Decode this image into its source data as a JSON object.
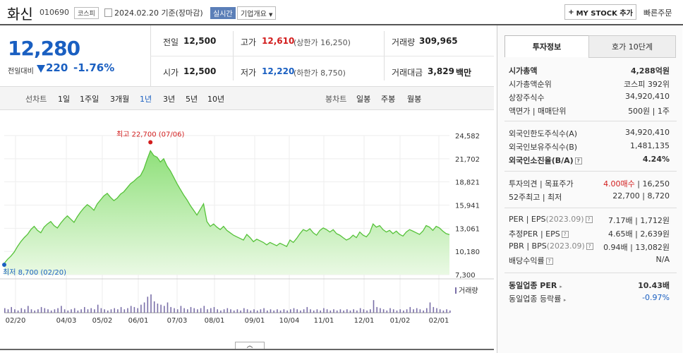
{
  "header": {
    "name": "화신",
    "code": "010690",
    "market": "코스피",
    "date": "2024.02.20",
    "date_suffix": "기준(장마감)",
    "realtime_label": "실시간",
    "overview_label": "기업개요",
    "mystock_label": "MY STOCK 추가",
    "quick_order_label": "빠른주문"
  },
  "price": {
    "current": "12,280",
    "diff_label": "전일대비",
    "diff": "220",
    "rate": "-1.76%"
  },
  "summary": {
    "prev_label": "전일",
    "prev": "12,500",
    "high_label": "고가",
    "high": "12,610",
    "upper_limit": "(상한가 16,250)",
    "volume_label": "거래량",
    "volume": "309,965",
    "open_label": "시가",
    "open": "12,500",
    "low_label": "저가",
    "low": "12,220",
    "lower_limit": "(하한가 8,750)",
    "amount_label": "거래대금",
    "amount": "3,829",
    "amount_unit": "백만"
  },
  "periods": {
    "line_label": "선차트",
    "items": [
      "1일",
      "1주일",
      "3개월",
      "1년",
      "3년",
      "5년",
      "10년"
    ],
    "active": "1년",
    "candle_label": "봉차트",
    "candle_items": [
      "일봉",
      "주봉",
      "월봉"
    ]
  },
  "chart_data": {
    "type": "area",
    "y_ticks": [
      "24,582",
      "21,702",
      "18,821",
      "15,941",
      "13,061",
      "10,180",
      "7,300"
    ],
    "ylim": [
      7300,
      24582
    ],
    "x_ticks": [
      "02/20",
      "04/03",
      "05/02",
      "06/01",
      "07/03",
      "08/01",
      "09/01",
      "10/04",
      "11/01",
      "12/01",
      "01/02",
      "02/01"
    ],
    "high_annotation": "최고 22,700 (07/06)",
    "low_annotation": "최저 8,700 (02/20)",
    "volume_label": "거래량",
    "values": [
      8700,
      9200,
      9600,
      10100,
      10800,
      11400,
      11900,
      12300,
      12900,
      13300,
      12800,
      12500,
      13200,
      13600,
      13900,
      13400,
      13100,
      13700,
      14200,
      14600,
      14200,
      13800,
      14500,
      15100,
      15600,
      16000,
      15700,
      15300,
      16100,
      16600,
      17100,
      17400,
      16900,
      16500,
      16800,
      17300,
      17600,
      18100,
      18600,
      18900,
      19300,
      19600,
      20400,
      21600,
      22700,
      22100,
      21900,
      21300,
      21700,
      20800,
      20200,
      19400,
      18600,
      17900,
      17200,
      16600,
      15900,
      15300,
      14700,
      15400,
      16100,
      13900,
      13300,
      13600,
      13200,
      12900,
      13300,
      12800,
      12500,
      12200,
      12000,
      11800,
      11600,
      12300,
      11900,
      11400,
      11700,
      11500,
      11300,
      11000,
      11300,
      11100,
      10900,
      11200,
      11000,
      10800,
      11600,
      11300,
      11800,
      12400,
      12900,
      12700,
      13000,
      12500,
      12200,
      12800,
      13100,
      12900,
      12600,
      12900,
      12400,
      12200,
      11900,
      11600,
      11800,
      12200,
      11900,
      12600,
      12200,
      12000,
      12500,
      13600,
      13200,
      13400,
      12900,
      12600,
      12800,
      12400,
      12700,
      12300,
      12100,
      12600,
      12900,
      12700,
      12500,
      12300,
      12700,
      13400,
      13200,
      12800,
      13300,
      13100,
      12700,
      12400,
      12280
    ],
    "volumes": [
      4,
      3,
      5,
      3,
      2,
      4,
      3,
      6,
      3,
      2,
      3,
      5,
      4,
      3,
      2,
      3,
      4,
      6,
      3,
      2,
      3,
      4,
      2,
      3,
      5,
      3,
      4,
      3,
      7,
      4,
      3,
      2,
      3,
      4,
      3,
      5,
      3,
      4,
      6,
      5,
      4,
      7,
      9,
      14,
      16,
      10,
      8,
      7,
      6,
      9,
      5,
      4,
      3,
      6,
      4,
      3,
      5,
      4,
      3,
      4,
      6,
      3,
      4,
      5,
      3,
      2,
      3,
      4,
      3,
      2,
      3,
      2,
      4,
      3,
      2,
      3,
      2,
      3,
      4,
      2,
      3,
      2,
      3,
      2,
      3,
      2,
      3,
      4,
      3,
      2,
      3,
      5,
      3,
      2,
      3,
      2,
      4,
      3,
      2,
      3,
      2,
      3,
      2,
      3,
      2,
      3,
      2,
      4,
      3,
      2,
      3,
      11,
      5,
      4,
      3,
      2,
      4,
      3,
      2,
      3,
      2,
      3,
      5,
      3,
      4,
      3,
      2,
      4,
      9,
      5,
      4,
      3,
      2,
      3,
      2
    ]
  },
  "right_panel": {
    "tab_on": "투자정보",
    "tab_off": "호가 10단계",
    "market_cap_label": "시가총액",
    "market_cap": "4,288억원",
    "cap_rank_label": "시가총액순위",
    "cap_rank": "코스피 392위",
    "shares_label": "상장주식수",
    "shares": "34,920,410",
    "par_label": "액면가 | 매매단위",
    "par": "500원 | 1주",
    "foreign_limit_label": "외국인한도주식수(A)",
    "foreign_limit": "34,920,410",
    "foreign_hold_label": "외국인보유주식수(B)",
    "foreign_hold": "1,481,135",
    "foreign_rate_label": "외국인소진율(B/A)",
    "foreign_rate": "4.24%",
    "opinion_label": "투자의견 | 목표주가",
    "opinion": "4.00매수",
    "target": "16,250",
    "wk52_label": "52주최고 | 최저",
    "wk52_high": "22,700",
    "wk52_low": "8,720",
    "per_label": "PER | EPS",
    "per_period": "(2023.09)",
    "per": "7.17배",
    "eps": "1,712원",
    "est_per_label": "추정PER | EPS",
    "est_per": "4.65배",
    "est_eps": "2,639원",
    "pbr_label": "PBR | BPS",
    "pbr_period": "(2023.09)",
    "pbr": "0.94배",
    "bps": "13,082원",
    "div_label": "배당수익률",
    "div": "N/A",
    "ind_per_label": "동일업종 PER",
    "ind_per": "10.43배",
    "ind_rate_label": "동일업종 등락률",
    "ind_rate": "-0.97%"
  }
}
